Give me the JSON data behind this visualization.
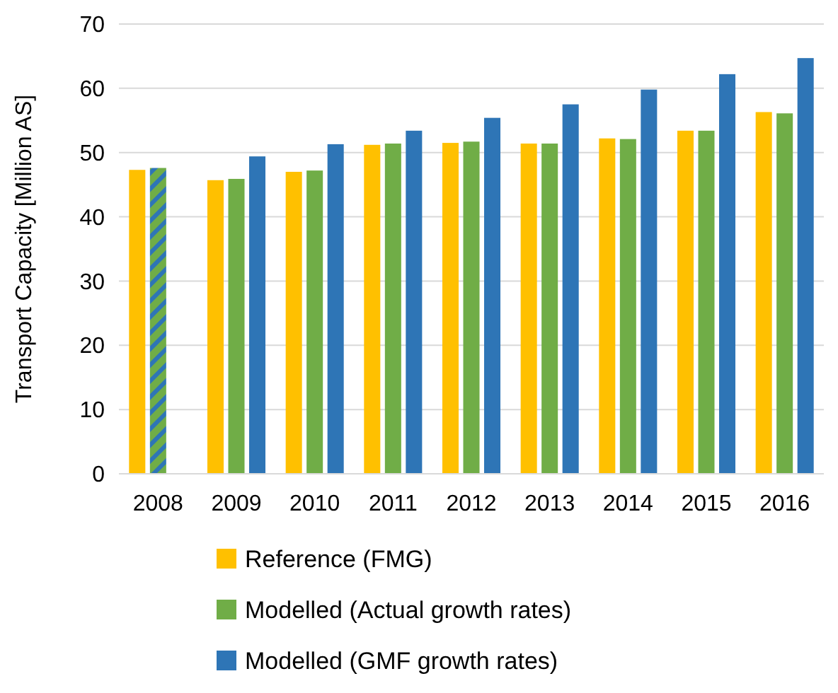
{
  "chart_data": {
    "type": "bar",
    "ylabel": "Transport Capacity [Million AS]",
    "categories": [
      "2008",
      "2009",
      "2010",
      "2011",
      "2012",
      "2013",
      "2014",
      "2015",
      "2016"
    ],
    "series": [
      {
        "name": "Reference (FMG)",
        "color": "#ffc000",
        "values": [
          47.3,
          45.7,
          47.0,
          51.2,
          51.5,
          51.4,
          52.2,
          53.4,
          56.3
        ]
      },
      {
        "name": "Modelled (Actual growth rates)",
        "color": "#70ad47",
        "values": [
          47.6,
          45.9,
          47.2,
          51.4,
          51.7,
          51.4,
          52.1,
          53.4,
          56.1
        ]
      },
      {
        "name": "Modelled (GMF growth rates)",
        "color": "#2e75b6",
        "values": [
          null,
          49.4,
          51.3,
          53.4,
          55.4,
          57.5,
          59.8,
          62.2,
          64.7
        ]
      }
    ],
    "ylim": [
      0,
      70
    ],
    "yticks": [
      0,
      10,
      20,
      30,
      40,
      50,
      60,
      70
    ],
    "grid": "y",
    "legend": "bottom"
  }
}
